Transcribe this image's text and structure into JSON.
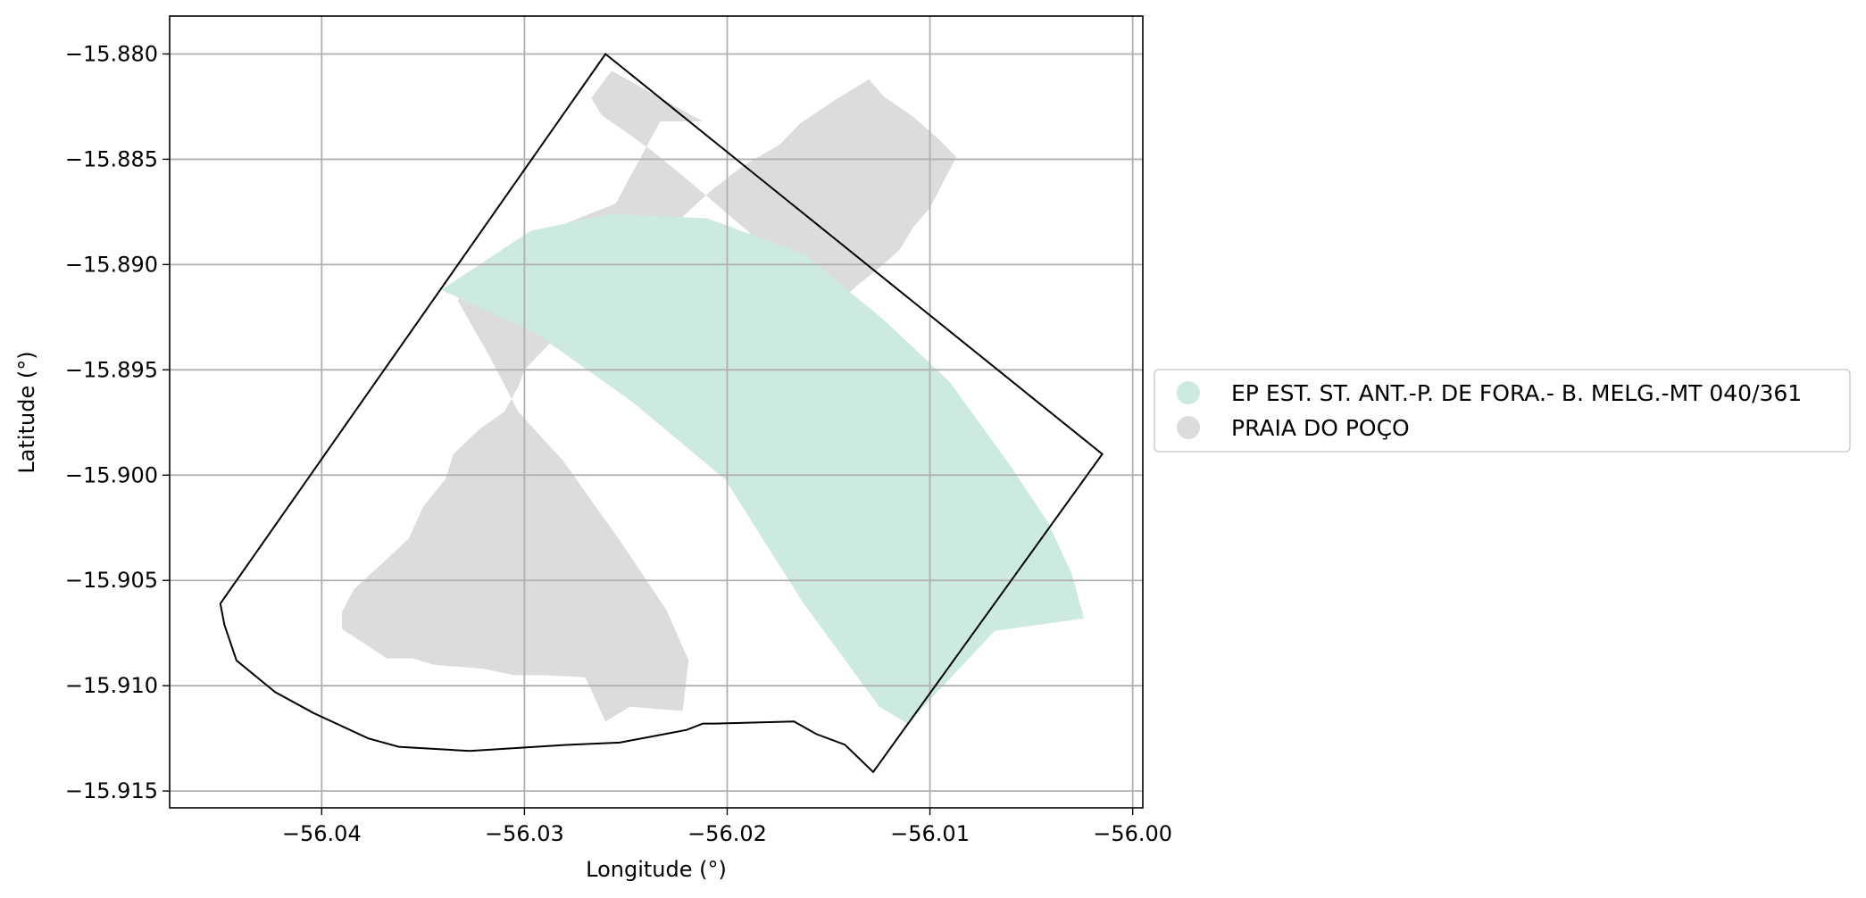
{
  "chart_data": {
    "type": "map",
    "xlabel": "Longitude (°)",
    "ylabel": "Latitude (°)",
    "xlim": [
      -56.0475,
      -55.9995
    ],
    "ylim": [
      -15.9158,
      -15.8782
    ],
    "grid": true,
    "x_ticks": [
      {
        "value": -56.04,
        "label": "−56.04"
      },
      {
        "value": -56.03,
        "label": "−56.03"
      },
      {
        "value": -56.02,
        "label": "−56.02"
      },
      {
        "value": -56.01,
        "label": "−56.01"
      },
      {
        "value": -56.0,
        "label": "−56.00"
      }
    ],
    "y_ticks": [
      {
        "value": -15.88,
        "label": "−15.880"
      },
      {
        "value": -15.885,
        "label": "−15.885"
      },
      {
        "value": -15.89,
        "label": "−15.890"
      },
      {
        "value": -15.895,
        "label": "−15.895"
      },
      {
        "value": -15.9,
        "label": "−15.900"
      },
      {
        "value": -15.905,
        "label": "−15.905"
      },
      {
        "value": -15.91,
        "label": "−15.910"
      },
      {
        "value": -15.915,
        "label": "−15.915"
      }
    ],
    "legend_position": "right",
    "legend": [
      {
        "label": "EP EST. ST. ANT.-P. DE FORA.- B. MELG.-MT 040/361",
        "color": "#cdeade"
      },
      {
        "label": "PRAIA DO POÇO",
        "color": "#dcdcdc"
      }
    ],
    "layers": [
      {
        "name": "PRAIA DO POÇO",
        "color": "#dcdcdc",
        "polygons": [
          [
            [
              -56.0257,
              -15.8808
            ],
            [
              -56.0212,
              -15.8832
            ],
            [
              -56.0233,
              -15.8832
            ],
            [
              -56.0255,
              -15.8871
            ],
            [
              -56.0302,
              -15.8889
            ],
            [
              -56.0333,
              -15.8917
            ],
            [
              -56.0317,
              -15.8944
            ],
            [
              -56.0303,
              -15.897
            ],
            [
              -56.0281,
              -15.8993
            ],
            [
              -56.0253,
              -15.9031
            ],
            [
              -56.023,
              -15.9064
            ],
            [
              -56.0219,
              -15.9088
            ],
            [
              -56.0222,
              -15.9112
            ],
            [
              -56.0248,
              -15.911
            ],
            [
              -56.026,
              -15.9117
            ],
            [
              -56.027,
              -15.9096
            ],
            [
              -56.029,
              -15.9095
            ],
            [
              -56.0305,
              -15.9095
            ],
            [
              -56.032,
              -15.9092
            ],
            [
              -56.0345,
              -15.909
            ],
            [
              -56.0355,
              -15.9087
            ],
            [
              -56.0368,
              -15.9087
            ],
            [
              -56.039,
              -15.9073
            ],
            [
              -56.039,
              -15.9065
            ],
            [
              -56.0384,
              -15.9054
            ],
            [
              -56.0368,
              -15.904
            ],
            [
              -56.0357,
              -15.903
            ],
            [
              -56.035,
              -15.9015
            ],
            [
              -56.0339,
              -15.9002
            ],
            [
              -56.0335,
              -15.899
            ],
            [
              -56.0322,
              -15.8978
            ],
            [
              -56.031,
              -15.897
            ],
            [
              -56.0303,
              -15.8958
            ],
            [
              -56.03,
              -15.895
            ],
            [
              -56.028,
              -15.893
            ],
            [
              -56.0263,
              -15.8913
            ],
            [
              -56.0243,
              -15.8897
            ],
            [
              -56.0225,
              -15.888
            ],
            [
              -56.0208,
              -15.8865
            ],
            [
              -56.0192,
              -15.8853
            ],
            [
              -56.0174,
              -15.8843
            ],
            [
              -56.0164,
              -15.8833
            ],
            [
              -56.0147,
              -15.8822
            ],
            [
              -56.013,
              -15.8812
            ],
            [
              -56.0123,
              -15.882
            ],
            [
              -56.0108,
              -15.883
            ],
            [
              -56.0095,
              -15.8841
            ],
            [
              -56.0087,
              -15.8849
            ],
            [
              -56.01,
              -15.8873
            ],
            [
              -56.0108,
              -15.8882
            ],
            [
              -56.0115,
              -15.8893
            ],
            [
              -56.0123,
              -15.89
            ],
            [
              -56.0136,
              -15.891
            ],
            [
              -56.0145,
              -15.8918
            ],
            [
              -56.016,
              -15.8921
            ],
            [
              -56.0166,
              -15.891
            ],
            [
              -56.0174,
              -15.89
            ],
            [
              -56.019,
              -15.8884
            ],
            [
              -56.0207,
              -15.887
            ],
            [
              -56.0223,
              -15.8857
            ],
            [
              -56.0237,
              -15.8846
            ],
            [
              -56.025,
              -15.8837
            ],
            [
              -56.0262,
              -15.8829
            ],
            [
              -56.0267,
              -15.8821
            ]
          ]
        ]
      },
      {
        "name": "EP EST. ST. ANT.-P. DE FORA.- B. MELG.-MT 040/361",
        "color": "#cdeade",
        "polygons": [
          [
            [
              -56.0341,
              -15.8912
            ],
            [
              -56.0297,
              -15.8884
            ],
            [
              -56.0257,
              -15.8876
            ],
            [
              -56.021,
              -15.8878
            ],
            [
              -56.0162,
              -15.8895
            ],
            [
              -56.0123,
              -15.8926
            ],
            [
              -56.009,
              -15.8956
            ],
            [
              -56.006,
              -15.8996
            ],
            [
              -56.0042,
              -15.9022
            ],
            [
              -56.003,
              -15.9047
            ],
            [
              -56.0024,
              -15.9068
            ],
            [
              -56.0068,
              -15.9074
            ],
            [
              -56.0111,
              -15.9118
            ],
            [
              -56.0125,
              -15.911
            ],
            [
              -56.0163,
              -15.906
            ],
            [
              -56.0201,
              -15.9002
            ],
            [
              -56.0247,
              -15.8965
            ],
            [
              -56.0294,
              -15.8933
            ]
          ]
        ]
      }
    ],
    "boundary": [
      [
        -56.026,
        -15.88
      ],
      [
        -56.0015,
        -15.899
      ],
      [
        -56.0128,
        -15.9141
      ],
      [
        -56.0142,
        -15.9128
      ],
      [
        -56.0156,
        -15.9123
      ],
      [
        -56.0167,
        -15.9117
      ],
      [
        -56.0206,
        -15.9118
      ],
      [
        -56.0212,
        -15.9118
      ],
      [
        -56.022,
        -15.9121
      ],
      [
        -56.0253,
        -15.9127
      ],
      [
        -56.0277,
        -15.9128
      ],
      [
        -56.0327,
        -15.9131
      ],
      [
        -56.0362,
        -15.9129
      ],
      [
        -56.0377,
        -15.9125
      ],
      [
        -56.0404,
        -15.9113
      ],
      [
        -56.0423,
        -15.9103
      ],
      [
        -56.0442,
        -15.9088
      ],
      [
        -56.0448,
        -15.9071
      ],
      [
        -56.045,
        -15.9061
      ]
    ]
  }
}
